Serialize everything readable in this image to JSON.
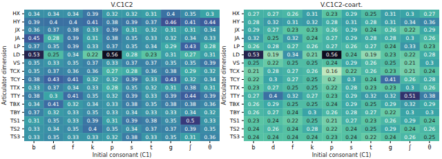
{
  "chart_data": [
    {
      "type": "heatmap",
      "title": "V.C1C2",
      "x_label": "Initial consonant (C1)",
      "y_label": "Articulator dimension",
      "x": [
        "b",
        "d",
        "f",
        "k",
        "p",
        "s",
        "t",
        "g",
        "ʃ",
        "θ"
      ],
      "y": [
        "HX",
        "HY",
        "JX",
        "JA",
        "LP",
        "LD",
        "VS",
        "TCX",
        "TCY",
        "TTX",
        "TTY",
        "TBX",
        "TBY",
        "TS1",
        "TS2",
        "TS3"
      ],
      "data_labels": true,
      "values": [
        [
          0.34,
          0.34,
          0.34,
          0.39,
          0.32,
          0.32,
          0.31,
          0.4,
          0.35,
          0.3
        ],
        [
          0.39,
          0.4,
          0.4,
          0.41,
          0.38,
          0.39,
          0.37,
          0.46,
          0.41,
          0.44
        ],
        [
          0.36,
          0.37,
          0.38,
          0.33,
          0.39,
          0.31,
          0.32,
          0.31,
          0.31,
          0.34
        ],
        [
          0.45,
          0.28,
          0.39,
          0.31,
          0.38,
          0.35,
          0.33,
          0.32,
          0.34,
          0.33
        ],
        [
          0.37,
          0.35,
          0.39,
          0.33,
          0.37,
          0.35,
          0.34,
          0.29,
          0.43,
          0.28
        ],
        [
          0.53,
          0.25,
          0.34,
          0.22,
          0.56,
          0.28,
          0.23,
          0.31,
          0.27,
          0.31
        ],
        [
          0.35,
          0.33,
          0.35,
          0.37,
          0.33,
          0.37,
          0.37,
          0.35,
          0.35,
          0.39
        ],
        [
          0.35,
          0.37,
          0.36,
          0.36,
          0.27,
          0.28,
          0.36,
          0.38,
          0.29,
          0.32
        ],
        [
          0.38,
          0.43,
          0.41,
          0.32,
          0.32,
          0.39,
          0.33,
          0.43,
          0.32,
          0.34
        ],
        [
          0.33,
          0.37,
          0.34,
          0.33,
          0.28,
          0.35,
          0.32,
          0.31,
          0.38,
          0.31
        ],
        [
          0.38,
          0.3,
          0.41,
          0.35,
          0.32,
          0.39,
          0.33,
          0.39,
          0.44,
          0.39
        ],
        [
          0.34,
          0.41,
          0.32,
          0.34,
          0.33,
          0.38,
          0.35,
          0.38,
          0.38,
          0.36
        ],
        [
          0.37,
          0.32,
          0.33,
          0.35,
          0.33,
          0.34,
          0.33,
          0.33,
          0.34,
          0.32
        ],
        [
          0.31,
          0.35,
          0.33,
          0.39,
          0.31,
          0.39,
          0.38,
          0.35,
          0.5,
          0.33
        ],
        [
          0.33,
          0.34,
          0.35,
          0.4,
          0.35,
          0.34,
          0.37,
          0.37,
          0.39,
          0.35
        ],
        [
          0.33,
          0.35,
          0.33,
          0.33,
          0.32,
          0.38,
          0.33,
          0.35,
          0.31,
          0.36
        ]
      ]
    },
    {
      "type": "heatmap",
      "title": "V.C1C2-coart.",
      "x_label": "Initial consonant (C1)",
      "y_label": "Articulator dimension",
      "x": [
        "b",
        "d",
        "f",
        "k",
        "p",
        "s",
        "t",
        "g",
        "ʃ",
        "θ"
      ],
      "y": [
        "HX",
        "HY",
        "JX",
        "JA",
        "LP",
        "LD",
        "VS",
        "TCX",
        "TCY",
        "TTX",
        "TTY",
        "TBX",
        "TBY",
        "TS1",
        "TS2",
        "TS3"
      ],
      "data_labels": true,
      "values": [
        [
          0.27,
          0.27,
          0.26,
          0.31,
          0.23,
          0.29,
          0.25,
          0.31,
          0.3,
          0.27
        ],
        [
          0.28,
          0.32,
          0.31,
          0.32,
          0.28,
          0.31,
          0.28,
          0.31,
          0.34,
          0.36
        ],
        [
          0.29,
          0.27,
          0.23,
          0.23,
          0.26,
          0.29,
          0.24,
          0.26,
          0.22,
          0.29
        ],
        [
          0.32,
          0.25,
          0.32,
          0.24,
          0.27,
          0.29,
          0.28,
          0.28,
          0.3,
          0.26
        ],
        [
          0.26,
          0.28,
          0.27,
          0.26,
          0.27,
          0.26,
          0.27,
          0.24,
          0.33,
          0.23
        ],
        [
          0.53,
          0.19,
          0.34,
          0.21,
          0.56,
          0.24,
          0.19,
          0.23,
          0.22,
          0.28
        ],
        [
          0.25,
          0.22,
          0.25,
          0.25,
          0.24,
          0.29,
          0.26,
          0.25,
          0.21,
          0.3
        ],
        [
          0.21,
          0.28,
          0.27,
          0.26,
          0.16,
          0.22,
          0.26,
          0.23,
          0.21,
          0.24
        ],
        [
          0.22,
          0.3,
          0.27,
          0.25,
          0.2,
          0.3,
          0.24,
          0.41,
          0.26,
          0.28
        ],
        [
          0.23,
          0.27,
          0.25,
          0.25,
          0.22,
          0.28,
          0.23,
          0.23,
          0.3,
          0.26
        ],
        [
          0.27,
          0.4,
          0.32,
          0.27,
          0.23,
          0.29,
          0.32,
          0.32,
          0.51,
          0.38
        ],
        [
          0.26,
          0.29,
          0.25,
          0.25,
          0.24,
          0.29,
          0.25,
          0.29,
          0.32,
          0.29
        ],
        [
          0.26,
          0.27,
          0.24,
          0.3,
          0.26,
          0.28,
          0.27,
          0.22,
          0.3,
          0.3
        ],
        [
          0.23,
          0.24,
          0.22,
          0.25,
          0.21,
          0.27,
          0.23,
          0.26,
          0.29,
          0.24
        ],
        [
          0.24,
          0.26,
          0.24,
          0.28,
          0.22,
          0.24,
          0.25,
          0.29,
          0.24,
          0.26
        ],
        [
          0.24,
          0.24,
          0.24,
          0.24,
          0.23,
          0.24,
          0.22,
          0.24,
          0.26,
          0.25
        ]
      ]
    }
  ]
}
